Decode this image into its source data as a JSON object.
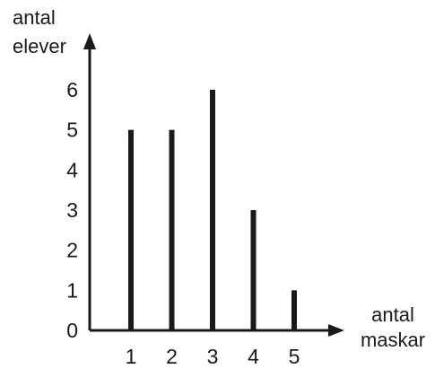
{
  "chart_data": {
    "type": "bar",
    "categories": [
      "1",
      "2",
      "3",
      "4",
      "5"
    ],
    "values": [
      5,
      5,
      6,
      3,
      1
    ],
    "title": "",
    "ylabel": [
      "antal",
      "elever"
    ],
    "xlabel": [
      "antal",
      "maskar"
    ],
    "yticks": [
      "0",
      "1",
      "2",
      "3",
      "4",
      "5",
      "6"
    ],
    "ylim": [
      0,
      6
    ],
    "grid": false,
    "legend": "none",
    "bar_style": "thin-line"
  },
  "colors": {
    "ink": "#1a1a1a",
    "background": "#ffffff"
  }
}
